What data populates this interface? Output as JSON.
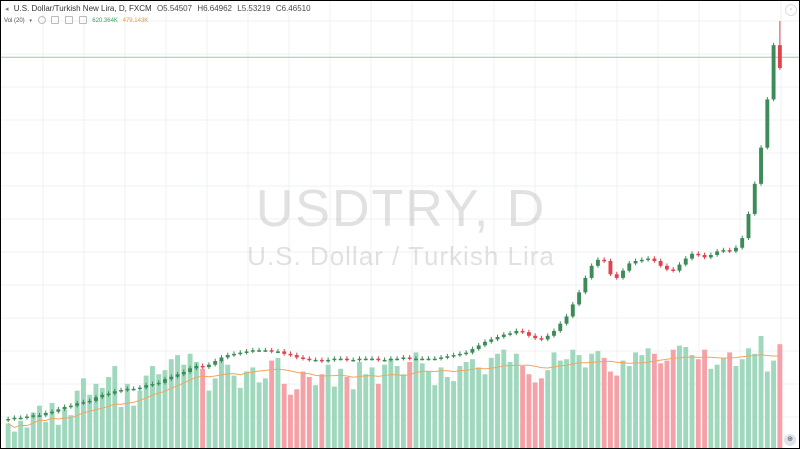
{
  "symbol": {
    "title": "U.S. Dollar/Turkish New Lira, D, FXCM",
    "open": "O5.54507",
    "high": "H6.64962",
    "low": "L5.53219",
    "close": "C6.46510"
  },
  "volume_legend": {
    "label": "Vol (20)",
    "value1": "620.364K",
    "value2": "479.143K"
  },
  "watermark": {
    "title": "USDTRY, D",
    "subtitle": "U.S. Dollar / Turkish Lira"
  },
  "colors": {
    "up": "#3d8b58",
    "down": "#e0434e",
    "vol_up": "#9fd8bd",
    "vol_down": "#f4a2a8",
    "ma": "#f4a460",
    "grid": "#eef0f3",
    "hline": "#9ec9a5"
  },
  "chart_data": {
    "type": "candlestick",
    "x_label": "",
    "y_label": "",
    "price_range": [
      3.5,
      6.9
    ],
    "series": [
      {
        "name": "USDTRY",
        "values": [
          3.55,
          3.56,
          3.56,
          3.57,
          3.58,
          3.58,
          3.6,
          3.61,
          3.63,
          3.65,
          3.66,
          3.68,
          3.69,
          3.7,
          3.73,
          3.75,
          3.76,
          3.78,
          3.79,
          3.8,
          3.8,
          3.81,
          3.83,
          3.84,
          3.85,
          3.88,
          3.9,
          3.92,
          3.94,
          3.97,
          3.99,
          3.98,
          4.0,
          4.03,
          4.06,
          4.08,
          4.09,
          4.1,
          4.11,
          4.12,
          4.12,
          4.12,
          4.11,
          4.11,
          4.09,
          4.08,
          4.06,
          4.05,
          4.04,
          4.04,
          4.03,
          4.04,
          4.05,
          4.05,
          4.04,
          4.04,
          4.05,
          4.05,
          4.05,
          4.04,
          4.04,
          4.05,
          4.05,
          4.06,
          4.05,
          4.05,
          4.05,
          4.05,
          4.05,
          4.06,
          4.07,
          4.08,
          4.09,
          4.1,
          4.13,
          4.16,
          4.19,
          4.21,
          4.23,
          4.25,
          4.26,
          4.28,
          4.27,
          4.24,
          4.22,
          4.21,
          4.24,
          4.28,
          4.34,
          4.4,
          4.5,
          4.6,
          4.72,
          4.82,
          4.87,
          4.86,
          4.75,
          4.72,
          4.78,
          4.84,
          4.86,
          4.87,
          4.88,
          4.86,
          4.82,
          4.79,
          4.78,
          4.83,
          4.88,
          4.92,
          4.91,
          4.89,
          4.91,
          4.94,
          4.95,
          4.94,
          4.97,
          5.05,
          5.25,
          5.5,
          5.8,
          6.2,
          6.65,
          6.46
        ]
      },
      {
        "name": "Vol (20)",
        "values": [
          180,
          120,
          200,
          150,
          260,
          310,
          190,
          330,
          170,
          280,
          240,
          420,
          510,
          390,
          470,
          440,
          520,
          600,
          300,
          470,
          310,
          420,
          530,
          600,
          540,
          570,
          650,
          680,
          610,
          690,
          630,
          580,
          420,
          510,
          640,
          610,
          530,
          440,
          560,
          590,
          480,
          510,
          640,
          660,
          470,
          390,
          430,
          560,
          520,
          460,
          540,
          610,
          450,
          580,
          520,
          430,
          630,
          540,
          590,
          470,
          610,
          650,
          600,
          540,
          630,
          700,
          620,
          560,
          460,
          590,
          520,
          490,
          600,
          630,
          650,
          590,
          540,
          660,
          690,
          720,
          630,
          690,
          600,
          540,
          480,
          510,
          570,
          700,
          640,
          650,
          720,
          680,
          590,
          690,
          710,
          660,
          560,
          530,
          640,
          600,
          700,
          680,
          730,
          690,
          620,
          640,
          720,
          750,
          740,
          680,
          650,
          720,
          580,
          610,
          660,
          700,
          600,
          650,
          730,
          690,
          820,
          560,
          640,
          760,
          700,
          620
        ]
      }
    ]
  }
}
